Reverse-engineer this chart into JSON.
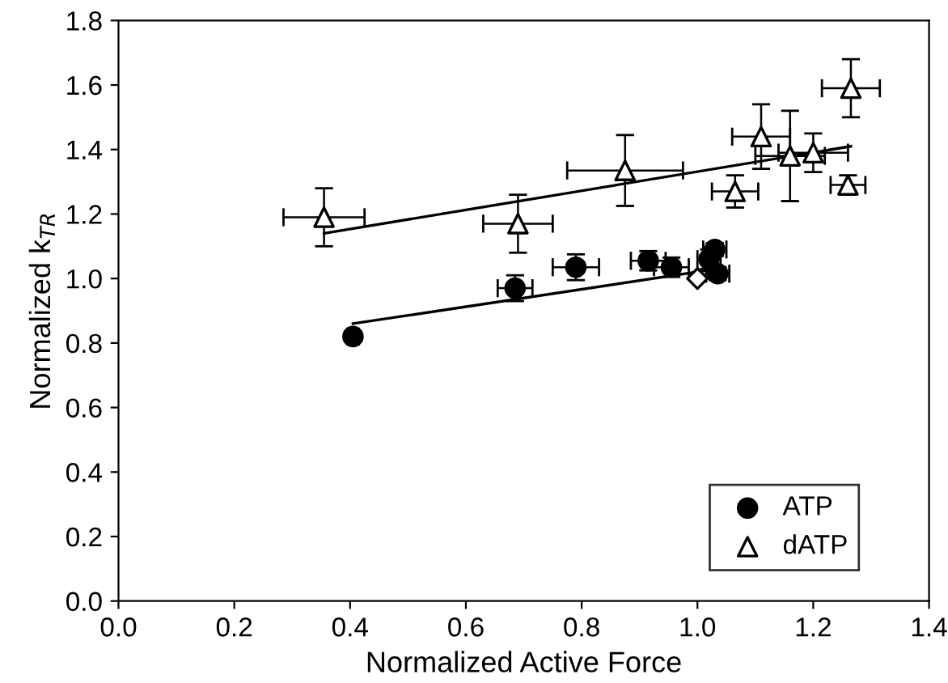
{
  "chart_data": {
    "type": "scatter",
    "xlabel": "Normalized Active Force",
    "ylabel": "Normalized k$_{TR}$",
    "xlim": [
      0.0,
      1.4
    ],
    "xticks": [
      {
        "value": 0.0,
        "label": "0.0"
      },
      0.2,
      0.4,
      0.6,
      0.8,
      {
        "value": 1.0,
        "label": "1.0"
      },
      1.2,
      1.4
    ],
    "ylim": [
      0.0,
      1.8
    ],
    "yticks": [
      {
        "value": 0.0,
        "label": "0.0"
      },
      0.2,
      0.4,
      0.6,
      0.8,
      {
        "value": 1.0,
        "label": "1.0"
      },
      1.2,
      1.4,
      1.6,
      1.8
    ],
    "grid": false,
    "legend": "bottom right",
    "series": [
      {
        "name": "ATP",
        "marker": "circle",
        "color": "#000000",
        "x": [
          0.405,
          0.685,
          0.79,
          0.915,
          0.955,
          1.02,
          1.03,
          1.035
        ],
        "values": [
          0.82,
          0.97,
          1.035,
          1.055,
          1.035,
          1.06,
          1.09,
          1.015
        ],
        "errors": [
          0.015,
          0.04,
          0.04,
          0.03,
          0.03,
          0.03,
          0.02,
          0.02
        ],
        "xerrors": [
          0.01,
          0.03,
          0.04,
          0.03,
          0.03,
          0.02,
          0.02,
          0.02
        ]
      },
      {
        "name": "dATP",
        "marker": "triangle",
        "color": "#ffffff",
        "x": [
          0.355,
          0.69,
          0.875,
          1.065,
          1.11,
          1.16,
          1.2,
          1.26,
          1.265
        ],
        "values": [
          1.19,
          1.17,
          1.335,
          1.27,
          1.44,
          1.38,
          1.39,
          1.29,
          1.59
        ],
        "errors": [
          0.09,
          0.09,
          0.11,
          0.05,
          0.1,
          0.14,
          0.06,
          0.03,
          0.09
        ],
        "xerrors": [
          0.07,
          0.06,
          0.1,
          0.04,
          0.05,
          0.06,
          0.06,
          0.03,
          0.05
        ]
      },
      {
        "marker": "diamond",
        "color": "#ffffff",
        "x": [
          1.0
        ],
        "values": [
          1.0
        ]
      },
      {
        "type": "line",
        "color": "#000000",
        "marker": "none",
        "x": [
          0.405,
          1.035
        ],
        "values": [
          0.86,
          1.03
        ]
      },
      {
        "type": "line",
        "color": "#000000",
        "marker": "none",
        "x": [
          0.355,
          1.265
        ],
        "values": [
          1.14,
          1.41
        ]
      }
    ]
  }
}
